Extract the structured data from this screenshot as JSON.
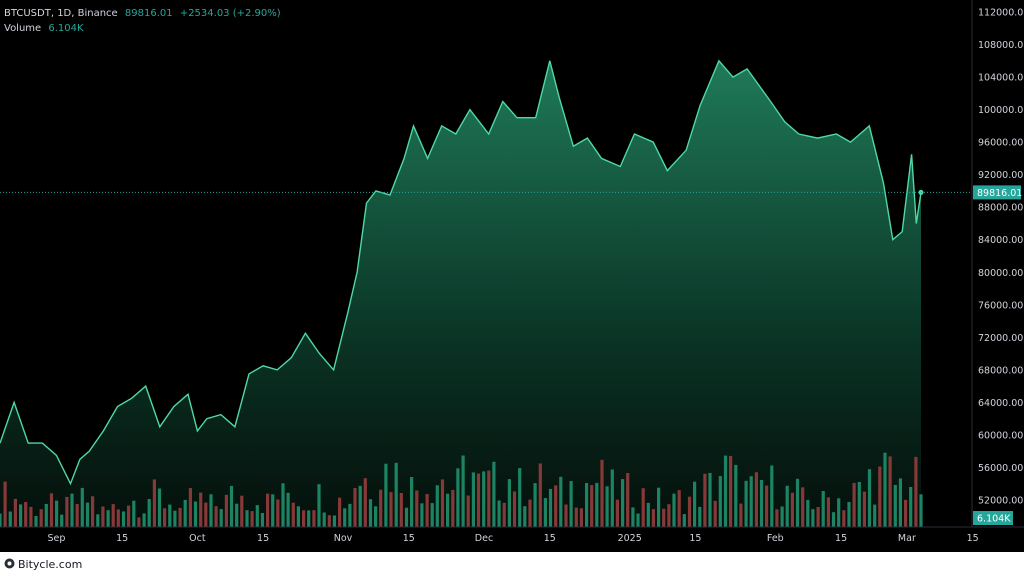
{
  "legend": {
    "symbol": "BTCUSDT, 1D, Binance",
    "last_price": "89816.01",
    "change": "+2534.03 (+2.90%)",
    "volume_label": "Volume",
    "volume_value": "6.104K"
  },
  "price_tag": "89816.01",
  "volume_tag": "6.104K",
  "footer": {
    "brand": "Bitycle.com"
  },
  "colors": {
    "background": "#000000",
    "line": "#4fd9a3",
    "up_volume": "#1e8a68",
    "down_volume": "#8e3b3b",
    "price_tag_bg": "#26a69a",
    "axis_text": "#d1d4dc"
  },
  "chart_data": {
    "type": "area",
    "title": "BTCUSDT, 1D, Binance",
    "x": [
      "2024-08-20",
      "2024-08-23",
      "2024-08-26",
      "2024-08-29",
      "2024-09-01",
      "2024-09-04",
      "2024-09-06",
      "2024-09-08",
      "2024-09-11",
      "2024-09-14",
      "2024-09-17",
      "2024-09-20",
      "2024-09-23",
      "2024-09-26",
      "2024-09-29",
      "2024-10-01",
      "2024-10-03",
      "2024-10-06",
      "2024-10-09",
      "2024-10-12",
      "2024-10-15",
      "2024-10-18",
      "2024-10-21",
      "2024-10-24",
      "2024-10-27",
      "2024-10-30",
      "2024-11-02",
      "2024-11-04",
      "2024-11-06",
      "2024-11-08",
      "2024-11-11",
      "2024-11-12",
      "2024-11-14",
      "2024-11-16",
      "2024-11-19",
      "2024-11-22",
      "2024-11-25",
      "2024-11-28",
      "2024-12-02",
      "2024-12-05",
      "2024-12-08",
      "2024-12-12",
      "2024-12-15",
      "2024-12-17",
      "2024-12-20",
      "2024-12-23",
      "2024-12-26",
      "2024-12-30",
      "2025-01-02",
      "2025-01-06",
      "2025-01-09",
      "2025-01-13",
      "2025-01-16",
      "2025-01-20",
      "2025-01-23",
      "2025-01-26",
      "2025-01-31",
      "2025-02-03",
      "2025-02-06",
      "2025-02-10",
      "2025-02-14",
      "2025-02-17",
      "2025-02-21",
      "2025-02-24",
      "2025-02-26",
      "2025-02-28",
      "2025-03-02",
      "2025-03-03",
      "2025-03-04"
    ],
    "values": [
      59000,
      64000,
      59000,
      59000,
      57500,
      54000,
      57000,
      58000,
      60500,
      63500,
      64500,
      66000,
      61000,
      63500,
      65000,
      60500,
      62000,
      62500,
      61000,
      67500,
      68500,
      68000,
      69500,
      72500,
      70000,
      68000,
      75000,
      80000,
      88500,
      90000,
      89500,
      91000,
      94000,
      98000,
      94000,
      98000,
      97000,
      100000,
      97000,
      101000,
      99000,
      99000,
      106000,
      101500,
      95500,
      96500,
      94000,
      93000,
      97000,
      96000,
      92500,
      95000,
      100500,
      106000,
      104000,
      105000,
      101000,
      98500,
      97000,
      96500,
      97000,
      96000,
      98000,
      91000,
      84000,
      85000,
      94500,
      86000,
      89816
    ],
    "ylim": [
      48000,
      113000
    ],
    "y_ticks": [
      "112000.00",
      "108000.00",
      "104000.00",
      "100000.00",
      "96000.00",
      "92000.00",
      "88000.00",
      "84000.00",
      "80000.00",
      "76000.00",
      "72000.00",
      "68000.00",
      "64000.00",
      "60000.00",
      "56000.00",
      "52000.00"
    ],
    "x_tick_labels": [
      "Sep",
      "15",
      "Oct",
      "15",
      "Nov",
      "15",
      "Dec",
      "15",
      "2025",
      "15",
      "Feb",
      "15",
      "Mar",
      "15"
    ],
    "volume": {
      "label": "Volume",
      "last": "6.104K",
      "values": [
        0.35,
        0.3,
        0.2,
        0.25,
        0.22,
        0.28,
        0.3,
        0.18,
        0.22,
        0.3,
        0.25,
        0.35,
        0.28,
        0.2,
        0.3,
        0.25,
        0.3,
        0.35,
        0.32,
        0.28,
        0.35,
        0.4,
        0.3,
        0.36,
        0.25,
        0.3,
        0.55,
        0.5,
        0.65,
        0.6,
        0.45,
        0.5,
        0.55,
        0.45,
        0.6,
        0.48,
        0.5,
        0.55,
        0.45,
        0.5,
        0.4,
        0.38,
        0.45,
        0.5,
        0.52,
        0.42,
        0.4,
        0.35,
        0.3,
        0.28,
        0.32,
        0.38,
        0.45,
        0.62,
        0.5,
        0.42,
        0.48,
        0.44,
        0.38,
        0.3,
        0.28,
        0.32,
        0.3,
        0.4,
        0.55,
        0.6,
        0.48,
        0.52,
        0.45
      ]
    }
  }
}
